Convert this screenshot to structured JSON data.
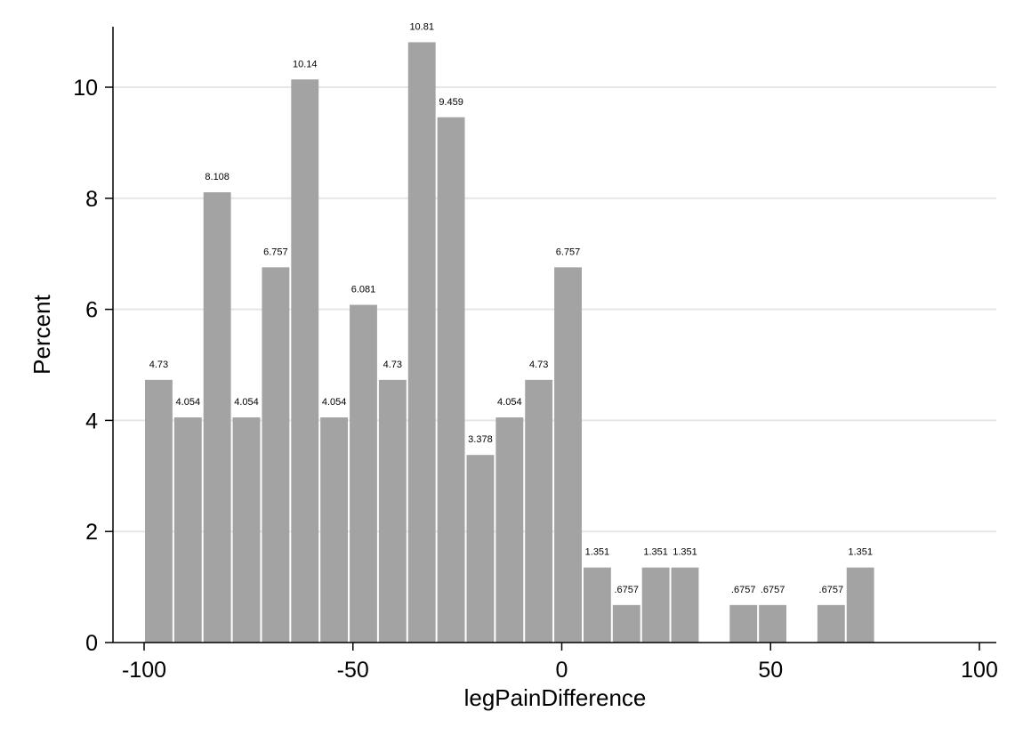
{
  "chart_data": {
    "type": "bar",
    "title": "",
    "xlabel": "legPainDifference",
    "ylabel": "Percent",
    "xlim": [
      -100,
      100
    ],
    "ylim": [
      0,
      11
    ],
    "bin_width": 7.0,
    "x_ticks": [
      -100,
      -50,
      0,
      50,
      100
    ],
    "x_tick_labels": [
      "-100",
      "-50",
      "0",
      "50",
      "100"
    ],
    "y_ticks": [
      0,
      2,
      4,
      6,
      8,
      10
    ],
    "y_tick_labels": [
      "0",
      "2",
      "4",
      "6",
      "8",
      "10"
    ],
    "grid": "horizontal",
    "bar_color": "#a3a3a3",
    "bins": [
      {
        "x_start": -100.0,
        "value": 4.73,
        "label": "4.73"
      },
      {
        "x_start": -93.0,
        "value": 4.054,
        "label": "4.054"
      },
      {
        "x_start": -86.0,
        "value": 8.108,
        "label": "8.108"
      },
      {
        "x_start": -79.0,
        "value": 4.054,
        "label": "4.054"
      },
      {
        "x_start": -72.0,
        "value": 6.757,
        "label": "6.757"
      },
      {
        "x_start": -65.0,
        "value": 10.14,
        "label": "10.14"
      },
      {
        "x_start": -58.0,
        "value": 4.054,
        "label": "4.054"
      },
      {
        "x_start": -51.0,
        "value": 6.081,
        "label": "6.081"
      },
      {
        "x_start": -44.0,
        "value": 4.73,
        "label": "4.73"
      },
      {
        "x_start": -37.0,
        "value": 10.81,
        "label": "10.81"
      },
      {
        "x_start": -30.0,
        "value": 9.459,
        "label": "9.459"
      },
      {
        "x_start": -23.0,
        "value": 3.378,
        "label": "3.378"
      },
      {
        "x_start": -16.0,
        "value": 4.054,
        "label": "4.054"
      },
      {
        "x_start": -9.0,
        "value": 4.73,
        "label": "4.73"
      },
      {
        "x_start": -2.0,
        "value": 6.757,
        "label": "6.757"
      },
      {
        "x_start": 5.0,
        "value": 1.351,
        "label": "1.351"
      },
      {
        "x_start": 12.0,
        "value": 0.6757,
        "label": ".6757"
      },
      {
        "x_start": 19.0,
        "value": 1.351,
        "label": "1.351"
      },
      {
        "x_start": 26.0,
        "value": 1.351,
        "label": "1.351"
      },
      {
        "x_start": 40.0,
        "value": 0.6757,
        "label": ".6757"
      },
      {
        "x_start": 47.0,
        "value": 0.6757,
        "label": ".6757"
      },
      {
        "x_start": 61.0,
        "value": 0.6757,
        "label": ".6757"
      },
      {
        "x_start": 68.0,
        "value": 1.351,
        "label": "1.351"
      }
    ]
  }
}
